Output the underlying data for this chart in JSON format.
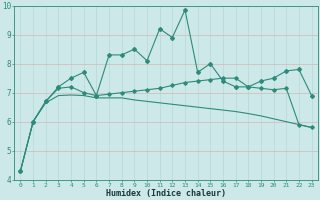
{
  "xlabel": "Humidex (Indice chaleur)",
  "x_values": [
    0,
    1,
    2,
    3,
    4,
    5,
    6,
    7,
    8,
    9,
    10,
    11,
    12,
    13,
    14,
    15,
    16,
    17,
    18,
    19,
    20,
    21,
    22,
    23
  ],
  "line1": [
    4.3,
    6.0,
    6.7,
    7.2,
    7.5,
    7.7,
    6.9,
    8.3,
    8.3,
    8.5,
    8.1,
    9.2,
    8.9,
    9.85,
    7.7,
    8.0,
    7.4,
    7.2,
    7.2,
    7.4,
    7.5,
    7.75,
    7.8,
    6.9
  ],
  "line2": [
    4.3,
    6.0,
    6.7,
    7.15,
    7.2,
    7.0,
    6.9,
    6.95,
    7.0,
    7.05,
    7.1,
    7.15,
    7.25,
    7.35,
    7.4,
    7.45,
    7.5,
    7.5,
    7.2,
    7.15,
    7.1,
    7.15,
    5.9,
    5.8
  ],
  "line3": [
    4.3,
    6.0,
    6.65,
    6.9,
    6.92,
    6.9,
    6.82,
    6.82,
    6.82,
    6.75,
    6.7,
    6.65,
    6.6,
    6.55,
    6.5,
    6.45,
    6.4,
    6.35,
    6.28,
    6.2,
    6.1,
    6.0,
    5.9,
    5.8
  ],
  "line_color": "#2e8b7a",
  "bg_color": "#cce8e8",
  "grid_color_major": "#b8d8d4",
  "grid_color_minor": "#daeaea",
  "ylim": [
    4,
    10
  ],
  "yticks": [
    4,
    5,
    6,
    7,
    8,
    9,
    10
  ],
  "xlim": [
    -0.5,
    23.5
  ]
}
